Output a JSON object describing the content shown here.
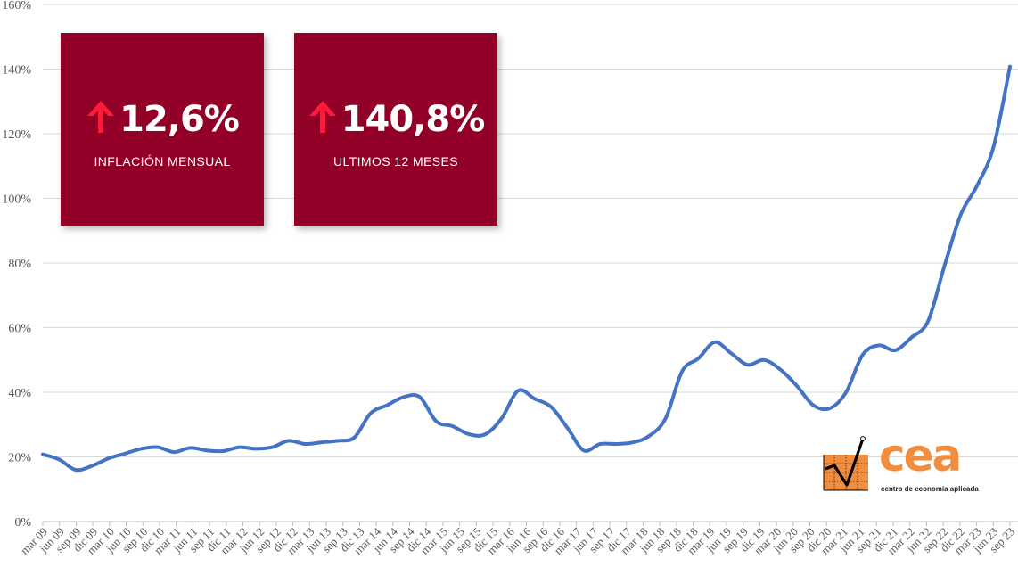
{
  "cards": [
    {
      "value": "12,6%",
      "label": "INFLACIÓN MENSUAL",
      "arrow": "up-arrow-icon"
    },
    {
      "value": "140,8%",
      "label": "ULTIMOS 12 MESES",
      "arrow": "up-arrow-icon"
    }
  ],
  "logo": {
    "word": "cea",
    "tagline": "centro de economía aplicada"
  },
  "colors": {
    "line": "#4472c4",
    "card": "#930027",
    "arrow": "#ff1a3a",
    "logo": "#f08d3e"
  },
  "chart_data": {
    "type": "line",
    "title": "",
    "xlabel": "",
    "ylabel": "",
    "ylim": [
      0,
      160
    ],
    "yticks": [
      "0%",
      "20%",
      "40%",
      "60%",
      "80%",
      "100%",
      "120%",
      "140%",
      "160%"
    ],
    "grid": true,
    "legend": "none",
    "x_ticks": [
      "mar 09",
      "jun 09",
      "sep 09",
      "dic 09",
      "mar 10",
      "jun 10",
      "sep 10",
      "dic 10",
      "mar 11",
      "jun 11",
      "sep 11",
      "dic 11",
      "mar 12",
      "jun 12",
      "sep 12",
      "dic 12",
      "mar 13",
      "jun 13",
      "sep 13",
      "dic 13",
      "mar 14",
      "jun 14",
      "sep 14",
      "dic 14",
      "mar 15",
      "jun 15",
      "sep 15",
      "dic 15",
      "mar 16",
      "jun 16",
      "sep 16",
      "dic 16",
      "mar 17",
      "jun 17",
      "sep 17",
      "dic 17",
      "mar 18",
      "jun 18",
      "sep 18",
      "dic 18",
      "mar 19",
      "jun 19",
      "sep 19",
      "dic 19",
      "mar 20",
      "jun 20",
      "sep 20",
      "dic 20",
      "mar 21",
      "jun 21",
      "sep 21",
      "dic 21",
      "mar 22",
      "jun 22",
      "sep 22",
      "dic 22",
      "mar 23",
      "jun 23",
      "sep 23"
    ],
    "series": [
      {
        "values": [
          20.8,
          19.2,
          16.0,
          17.2,
          19.5,
          21.0,
          22.5,
          23.0,
          21.5,
          22.8,
          22.0,
          21.8,
          23.0,
          22.5,
          23.0,
          25.0,
          24.0,
          24.5,
          25.0,
          26.0,
          33.5,
          36.0,
          38.5,
          38.5,
          31.0,
          29.5,
          27.0,
          27.0,
          32.0,
          40.5,
          38.0,
          35.5,
          29.0,
          22.0,
          24.0,
          24.0,
          24.5,
          26.5,
          32.0,
          46.5,
          50.5,
          55.5,
          52.0,
          48.5,
          50.0,
          47.0,
          42.0,
          36.0,
          35.0,
          40.0,
          51.5,
          54.5,
          53.0,
          57.0,
          62.0,
          79.0,
          95.0,
          104.0,
          116.0,
          140.8
        ]
      }
    ]
  }
}
